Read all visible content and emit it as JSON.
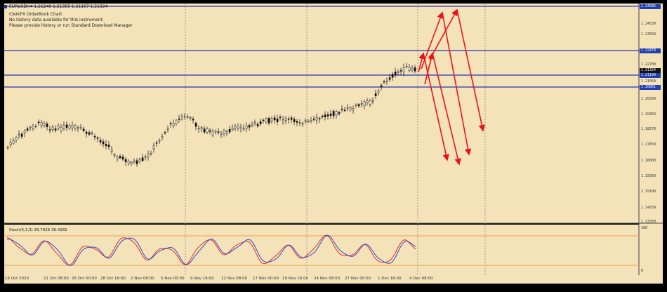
{
  "window": {
    "symbol_line": "EURUSDH4  1.21249 1.21355 1.21167 1.21324",
    "info_lines": [
      "ClerkFX OrderBook Chart",
      "No history data available for this instrument.",
      "Please provide history or run Standard Download Manager"
    ]
  },
  "price_axis": {
    "ticks": [
      "1.24530",
      "1.23550",
      "1.22700",
      "1.21050",
      "1.20200",
      "1.19350",
      "1.18570",
      "1.17650",
      "1.16800",
      "1.15950",
      "1.15100",
      "1.14250",
      "1.13370"
    ],
    "tags": [
      {
        "text": "1.24585",
        "style": "blue"
      },
      {
        "text": "1.22470",
        "style": "blue"
      },
      {
        "text": "1.21324",
        "style": "dark"
      },
      {
        "text": "1.21190",
        "style": "blue"
      },
      {
        "text": "1.20861",
        "style": "blue"
      }
    ]
  },
  "time_axis": {
    "labels": [
      "16 Oct 2020",
      "21 Oct 08:00",
      "26 Oct 00:00",
      "28 Oct 16:00",
      "2 Nov 08:00",
      "5 Nov 00:00",
      "9 Nov 16:00",
      "12 Nov 08:00",
      "17 Nov 00:00",
      "19 Nov 16:00",
      "24 Nov 08:00",
      "27 Nov 00:00",
      "1 Dec 16:00",
      "4 Dec 08:00"
    ]
  },
  "stochastic": {
    "label": "Stoch(5,3,3) 26.7626 36.4282",
    "scale_top": "100",
    "scale_bottom": "0"
  },
  "colors": {
    "background": "#f4e2b8",
    "grid": "#8a8a8a",
    "hline": "#2233bb",
    "arrow": "#e8141c",
    "candle": "#111111",
    "stoch_main": "#2a4ad0",
    "stoch_signal": "#e0302a",
    "stoch_level": "#f0a050"
  }
}
